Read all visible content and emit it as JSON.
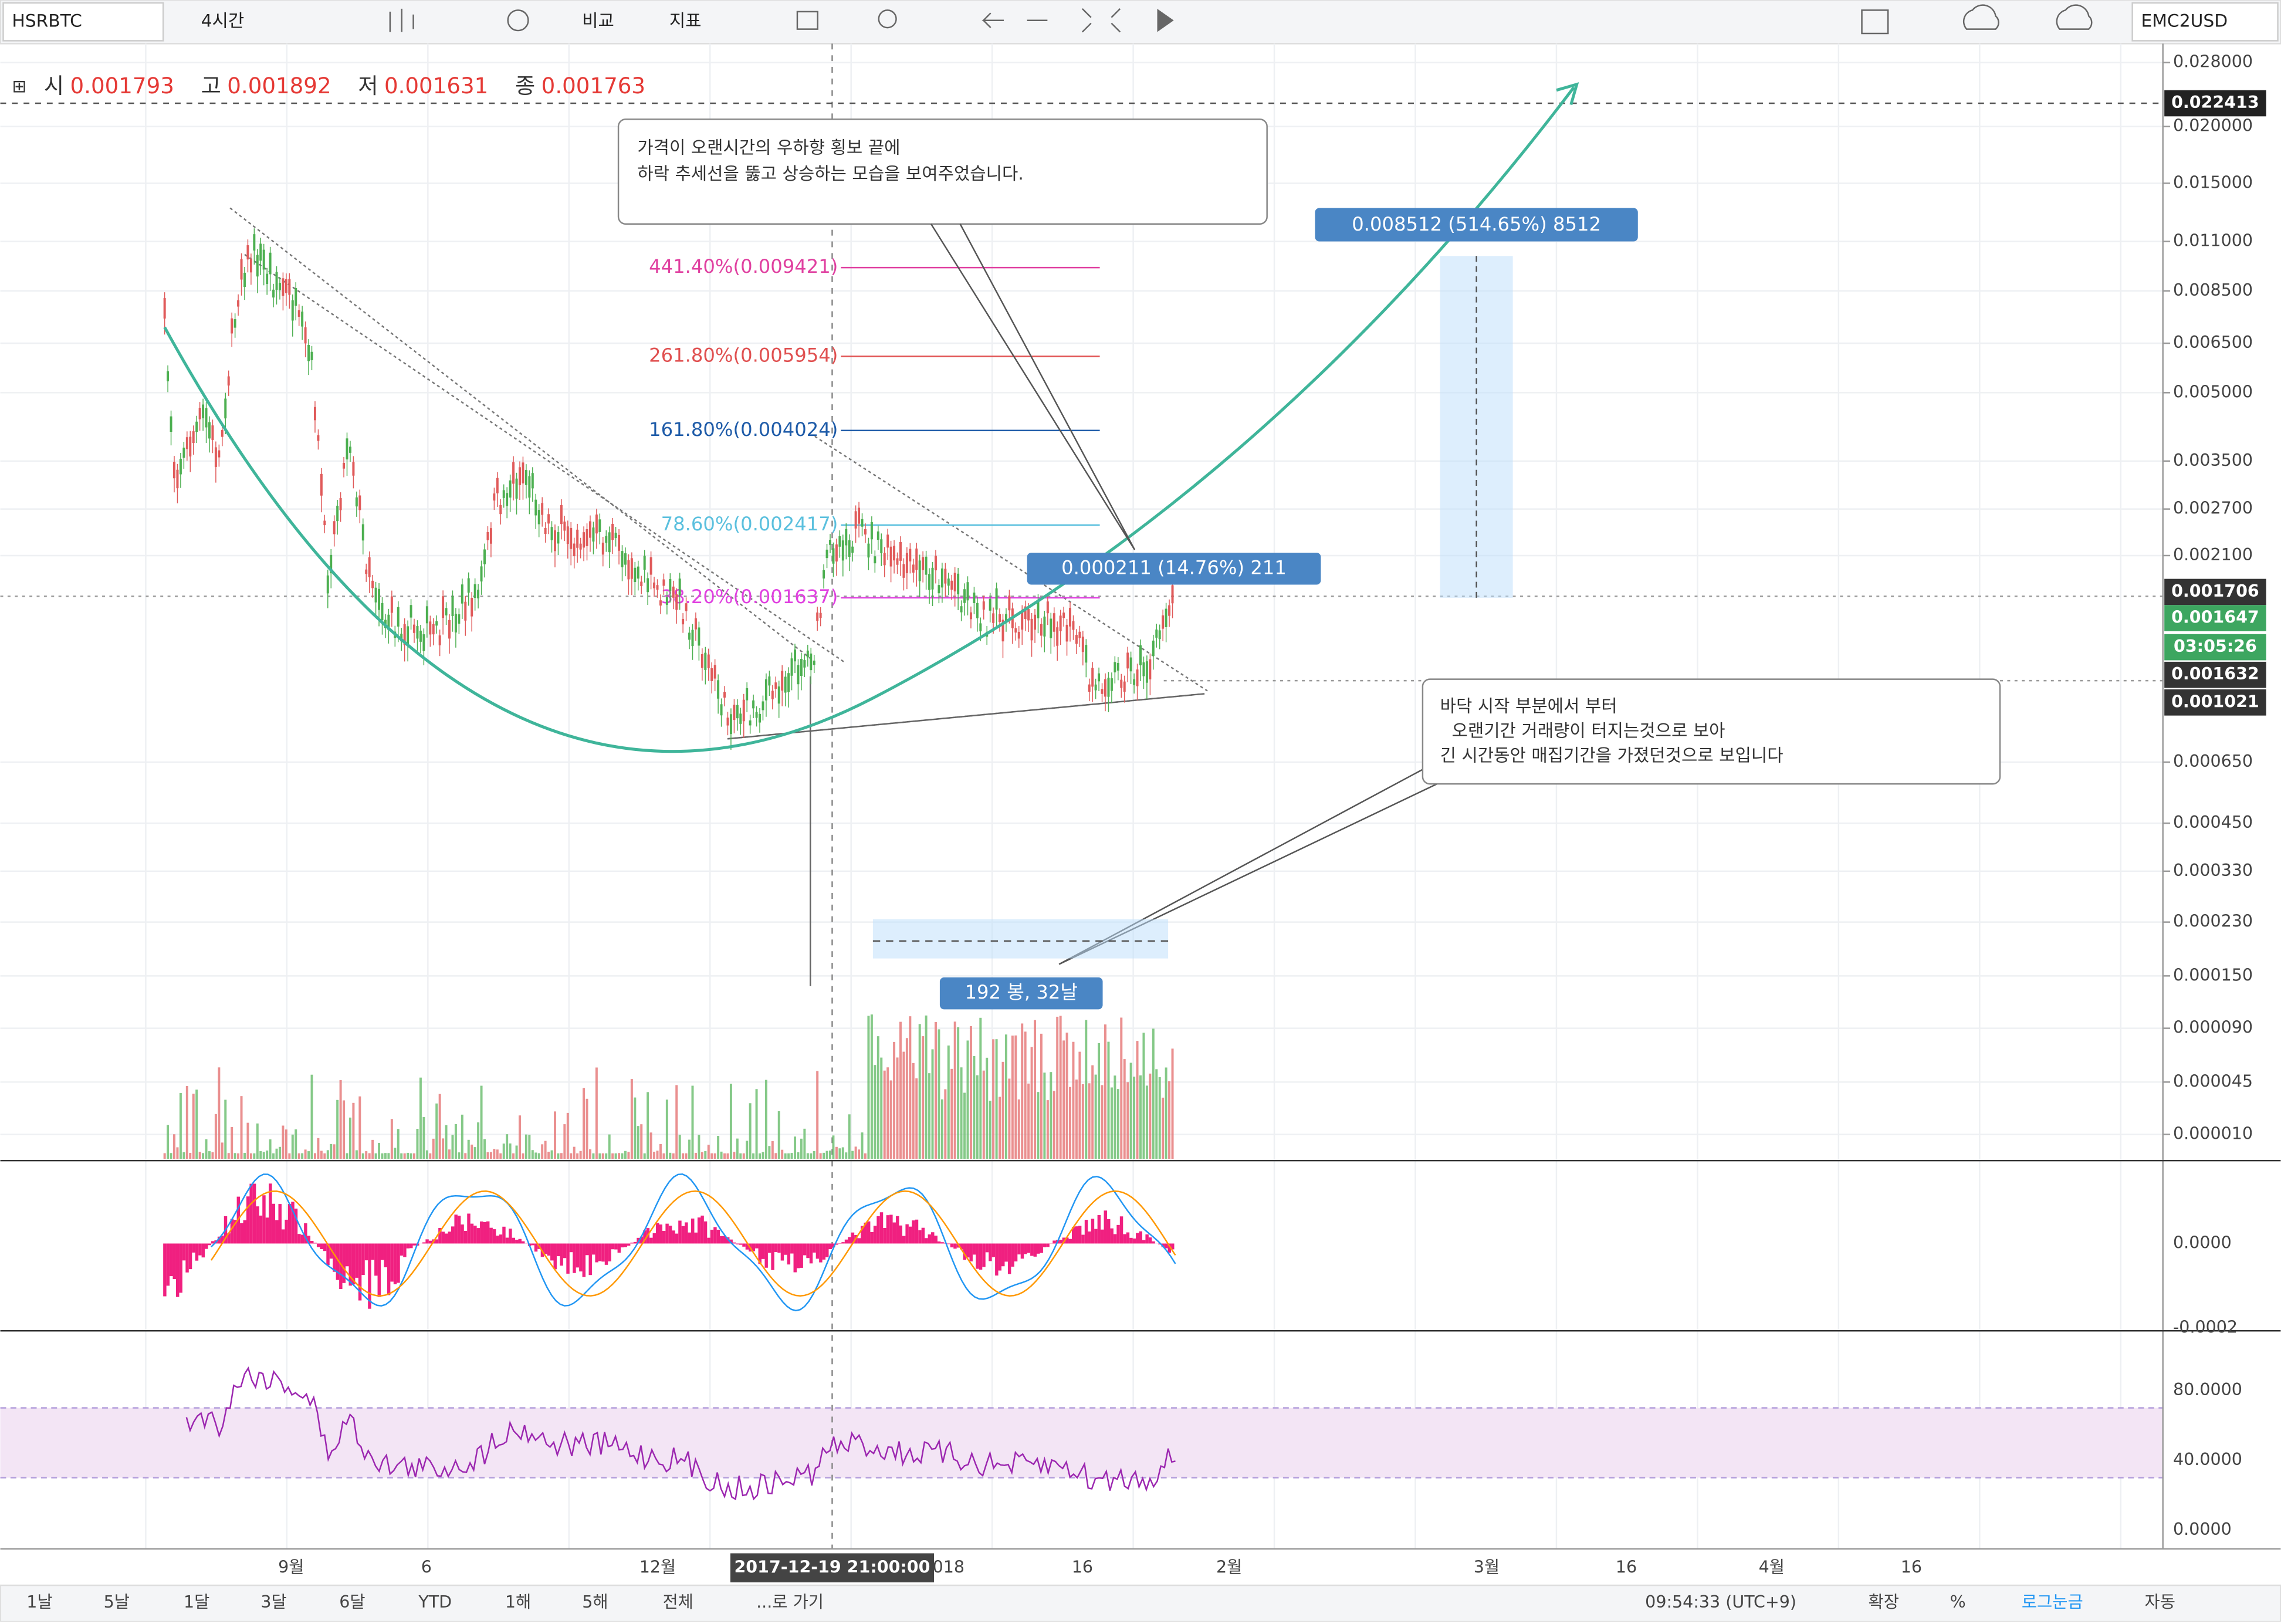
{
  "toolbar": {
    "symbol": "HSRBTC",
    "interval": "4시간",
    "compare": "비교",
    "indicators": "지표",
    "right_symbol": "EMC2USD"
  },
  "ohlc": {
    "labels": [
      "시",
      "고",
      "저",
      "종"
    ],
    "values": [
      "0.001793",
      "0.001892",
      "0.001631",
      "0.001763"
    ]
  },
  "price_axis": [
    "0.028000",
    "0.020000",
    "0.015000",
    "0.011000",
    "0.008500",
    "0.006500",
    "0.005000",
    "0.003500",
    "0.002700",
    "0.002100",
    "0.000650",
    "0.000450",
    "0.000330",
    "0.000230",
    "0.000150",
    "0.000090",
    "0.000045",
    "0.000010"
  ],
  "price_tags": [
    "0.022413",
    "0.001706",
    "0.001647",
    "03:05:26",
    "0.001632",
    "0.001021"
  ],
  "fib_levels": [
    "441.40%(0.009421)",
    "261.80%(0.005954)",
    "161.80%(0.004024)",
    "78.60%(0.002417)",
    "38.20%(0.001637)"
  ],
  "callout_top": [
    "가격이 오랜시간의 우하향 횡보 끝에",
    "하락 추세선을 뚫고 상승하는 모습을 보여주었습니다."
  ],
  "callout_bottom": [
    "바닥 시작 부분에서 부터",
    "오랜기간 거래량이 터지는것으로 보아",
    "긴 시간동안 매집기간을 가졌던것으로 보입니다"
  ],
  "measure_big": "0.008512 (514.65%) 8512",
  "measure_small": "0.000211 (14.76%) 211",
  "range_label": "192 봉, 32날",
  "macd_axis": [
    "0.0000",
    "-0.0002"
  ],
  "rsi_axis": [
    "80.0000",
    "40.0000",
    "0.0000"
  ],
  "time_axis": [
    "9월",
    "6",
    "12월",
    "2017-12-19 21:00:00",
    "018",
    "16",
    "2월",
    "3월",
    "16",
    "4월",
    "16"
  ],
  "bottom_bar": {
    "ranges": [
      "1날",
      "5날",
      "1달",
      "3달",
      "6달",
      "YTD",
      "1해",
      "5해",
      "전체",
      "...로 가기"
    ],
    "clock": "09:54:33 (UTC+9)",
    "options": [
      "확장",
      "%",
      "로그눈금",
      "자동"
    ]
  }
}
